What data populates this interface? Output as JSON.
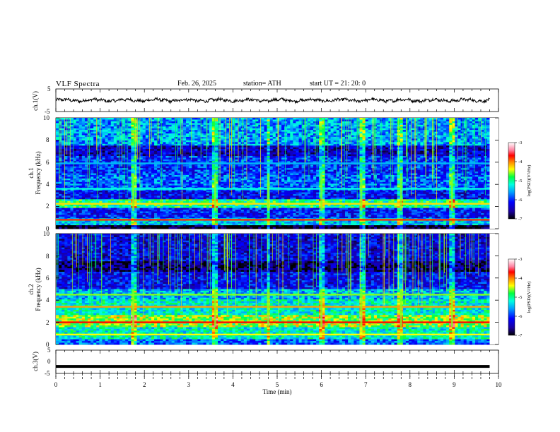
{
  "header": {
    "title": "VLF  Spectra",
    "date": "Feb. 26, 2025",
    "station": "station= ATH",
    "start_ut": "start  UT  =    21: 20: 0"
  },
  "chart_data": [
    {
      "type": "line",
      "panel": "ch1-waveform",
      "ylabel": "ch.1(V)",
      "ylim": [
        -5,
        5
      ],
      "y_ticks": [
        "5",
        "-5"
      ],
      "xlim": [
        0,
        10
      ],
      "x_extent_min": [
        0,
        9.8
      ],
      "trace_level": 0,
      "trace_amplitude_approx": 1,
      "color": "#000000"
    },
    {
      "type": "heatmap",
      "panel": "ch1-spectrogram",
      "ylabel": "ch.1\nFrequency  (kHz)",
      "ylabel_lines": [
        "ch.1",
        "Frequency  (kHz)"
      ],
      "ylim": [
        0,
        10
      ],
      "y_ticks": [
        "0",
        "2",
        "4",
        "6",
        "8",
        "10"
      ],
      "xlim": [
        0,
        9.8
      ],
      "colorbar": {
        "label": "log(PSD)(V²/Hz)",
        "range": [
          -7,
          -3
        ],
        "ticks": [
          "-3",
          "-4",
          "-5",
          "-6",
          "-7"
        ]
      },
      "bands_khz": [
        {
          "f": [
            0,
            0.35
          ],
          "level": -7.0
        },
        {
          "f": [
            0.35,
            1.0
          ],
          "level": -5.4
        },
        {
          "f": [
            1.0,
            1.8
          ],
          "level": -6.1
        },
        {
          "f": [
            1.8,
            2.6
          ],
          "level": -5.0
        },
        {
          "f": [
            2.6,
            3.4
          ],
          "level": -6.2
        },
        {
          "f": [
            3.4,
            4.8
          ],
          "level": -5.8
        },
        {
          "f": [
            4.8,
            6.5
          ],
          "level": -6.0
        },
        {
          "f": [
            6.5,
            7.5
          ],
          "level": -6.4
        },
        {
          "f": [
            7.5,
            10.0
          ],
          "level": -5.6
        }
      ],
      "lines_khz": [
        {
          "f": 0.8,
          "level": -3.8
        },
        {
          "f": 2.25,
          "level": -4.3
        },
        {
          "f": 3.6,
          "level": -5.2
        },
        {
          "f": 5.9,
          "level": -5.5
        }
      ],
      "bursts_min": [
        1.75,
        3.6,
        4.8,
        6.0,
        6.9,
        7.8,
        8.95
      ]
    },
    {
      "type": "heatmap",
      "panel": "ch2-spectrogram",
      "ylabel": "ch.2\nFrequency  (kHz)",
      "ylabel_lines": [
        "ch.2",
        "Frequency  (kHz)"
      ],
      "ylim": [
        0,
        10
      ],
      "y_ticks": [
        "0",
        "2",
        "4",
        "6",
        "8",
        "10"
      ],
      "xlim": [
        0,
        9.8
      ],
      "colorbar": {
        "label": "log(PSD)(V²/Hz)",
        "range": [
          -7,
          -3
        ],
        "ticks": [
          "-3",
          "-4",
          "-5",
          "-6",
          "-7"
        ]
      },
      "bands_khz": [
        {
          "f": [
            0,
            0.5
          ],
          "level": -5.8
        },
        {
          "f": [
            0.5,
            1.6
          ],
          "level": -5.2
        },
        {
          "f": [
            1.6,
            2.6
          ],
          "level": -4.6
        },
        {
          "f": [
            2.6,
            4.0
          ],
          "level": -5.2
        },
        {
          "f": [
            4.0,
            5.0
          ],
          "level": -5.5
        },
        {
          "f": [
            5.0,
            6.5
          ],
          "level": -6.2
        },
        {
          "f": [
            6.5,
            7.5
          ],
          "level": -6.7
        },
        {
          "f": [
            7.5,
            10.0
          ],
          "level": -6.3
        }
      ],
      "lines_khz": [
        {
          "f": 2.0,
          "level": -3.7
        },
        {
          "f": 3.4,
          "level": -4.1
        },
        {
          "f": 4.5,
          "level": -4.6
        },
        {
          "f": 0.9,
          "level": -4.4
        }
      ],
      "bursts_min": [
        1.75,
        3.6,
        4.8,
        6.0,
        6.9,
        7.8,
        8.95
      ]
    },
    {
      "type": "line",
      "panel": "ch3-waveform",
      "ylabel": "ch.3(V)",
      "ylim": [
        -5,
        5
      ],
      "y_ticks": [
        "5",
        "0",
        "-5"
      ],
      "xlim": [
        0,
        10
      ],
      "x_extent_min": [
        0,
        9.8
      ],
      "trace_level": -2,
      "color": "#000000"
    }
  ],
  "x_axis": {
    "xlabel": "Time  (min)",
    "ticks": [
      "0",
      "1",
      "2",
      "3",
      "4",
      "5",
      "6",
      "7",
      "8",
      "9",
      "10"
    ]
  }
}
